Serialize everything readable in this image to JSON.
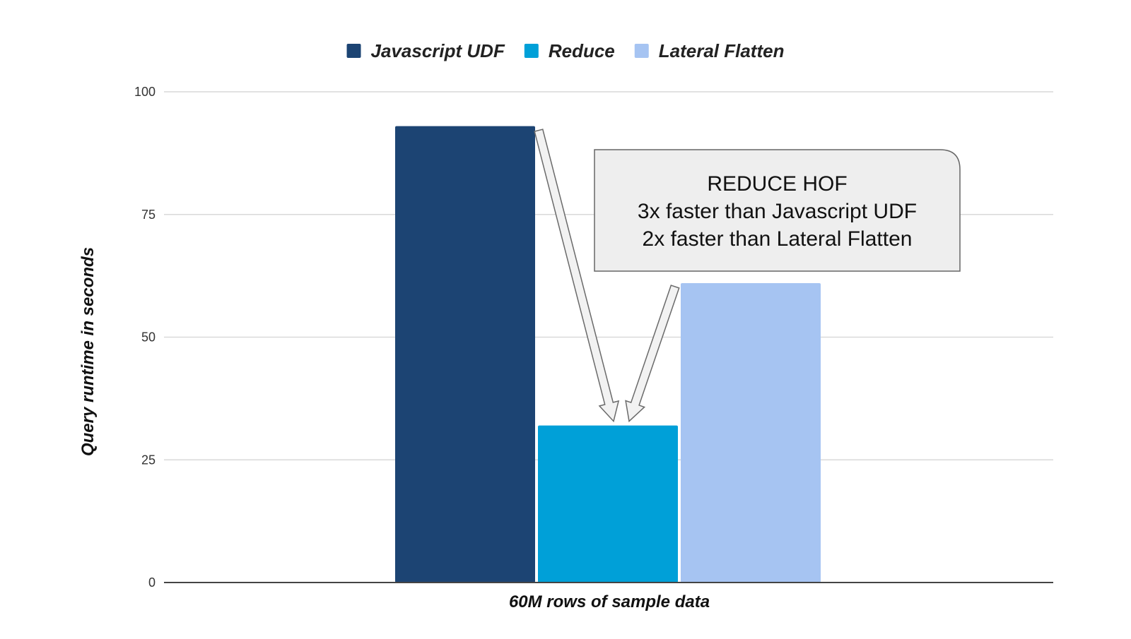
{
  "chart_data": {
    "type": "bar",
    "categories": [
      "60M rows of sample data"
    ],
    "series": [
      {
        "name": "Javascript UDF",
        "values": [
          93
        ],
        "color": "#1c4473"
      },
      {
        "name": "Reduce",
        "values": [
          32
        ],
        "color": "#00a0d8"
      },
      {
        "name": "Lateral Flatten",
        "values": [
          61
        ],
        "color": "#a6c4f2"
      }
    ],
    "title": "",
    "xlabel": "60M rows of sample data",
    "ylabel": "Query runtime in seconds",
    "ylim": [
      0,
      100
    ],
    "yticks": [
      0,
      25,
      50,
      75,
      100
    ],
    "grid": true,
    "legend_position": "top-center",
    "annotation": {
      "lines": [
        "REDUCE HOF",
        "3x faster than Javascript UDF",
        "2x faster than Lateral Flatten"
      ],
      "points_to": "Reduce"
    }
  }
}
